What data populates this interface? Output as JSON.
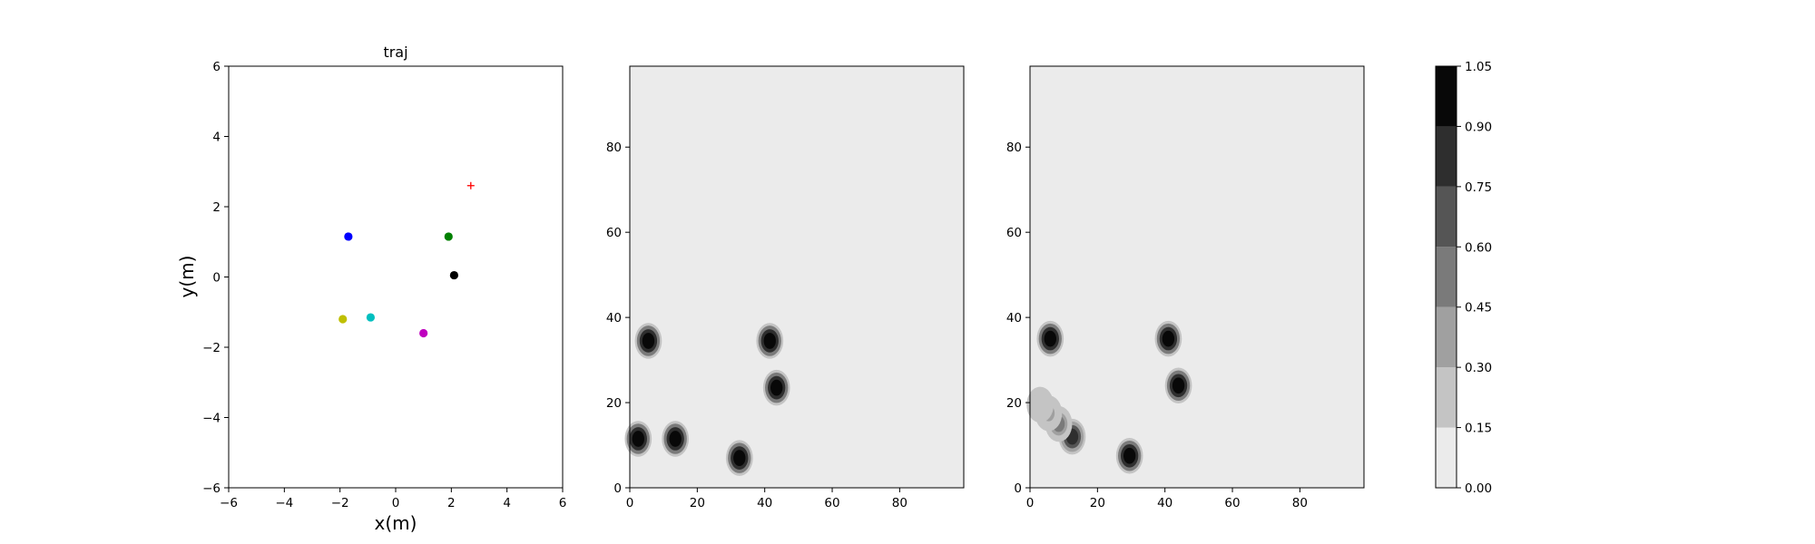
{
  "chart_data": [
    {
      "type": "scatter",
      "title": "traj",
      "xlabel": "x(m)",
      "ylabel": "y(m)",
      "xlim": [
        -6,
        6
      ],
      "ylim": [
        -6,
        6
      ],
      "xticks": [
        -6,
        -4,
        -2,
        0,
        2,
        4,
        6
      ],
      "yticks": [
        -6,
        -4,
        -2,
        0,
        2,
        4,
        6
      ],
      "points": [
        {
          "x": -1.7,
          "y": 1.15,
          "color": "#0000ff",
          "marker": "dot"
        },
        {
          "x": 1.9,
          "y": 1.15,
          "color": "#008000",
          "marker": "dot"
        },
        {
          "x": 2.1,
          "y": 0.05,
          "color": "#000000",
          "marker": "dot"
        },
        {
          "x": -1.9,
          "y": -1.2,
          "color": "#bfbf00",
          "marker": "dot"
        },
        {
          "x": -0.9,
          "y": -1.15,
          "color": "#00bfbf",
          "marker": "dot"
        },
        {
          "x": 1.0,
          "y": -1.6,
          "color": "#bf00bf",
          "marker": "dot"
        },
        {
          "x": 2.7,
          "y": 2.6,
          "color": "#ff0000",
          "marker": "plus"
        }
      ]
    },
    {
      "type": "heatmap",
      "xlim": [
        0,
        99
      ],
      "ylim": [
        0,
        99
      ],
      "xticks": [
        0,
        20,
        40,
        60,
        80
      ],
      "yticks": [
        0,
        20,
        40,
        60,
        80
      ],
      "background_value": 0.0,
      "blobs": [
        {
          "x": 5.5,
          "y": 34.5,
          "value": 1.0
        },
        {
          "x": 41.5,
          "y": 34.5,
          "value": 1.0
        },
        {
          "x": 43.5,
          "y": 23.5,
          "value": 1.0
        },
        {
          "x": 2.5,
          "y": 11.5,
          "value": 1.0
        },
        {
          "x": 13.5,
          "y": 11.5,
          "value": 1.0
        },
        {
          "x": 32.5,
          "y": 7.0,
          "value": 1.0
        }
      ]
    },
    {
      "type": "heatmap",
      "xlim": [
        0,
        99
      ],
      "ylim": [
        0,
        99
      ],
      "xticks": [
        0,
        20,
        40,
        60,
        80
      ],
      "yticks": [
        0,
        20,
        40,
        60,
        80
      ],
      "background_value": 0.0,
      "blobs": [
        {
          "x": 6.0,
          "y": 35.0,
          "value": 1.0
        },
        {
          "x": 41.0,
          "y": 35.0,
          "value": 1.0
        },
        {
          "x": 44.0,
          "y": 24.0,
          "value": 1.0
        },
        {
          "x": 29.5,
          "y": 7.5,
          "value": 1.0
        },
        {
          "x": 12.5,
          "y": 12.0,
          "value": 0.8
        },
        {
          "x": 8.5,
          "y": 15.0,
          "value": 0.5
        },
        {
          "x": 5.5,
          "y": 17.5,
          "value": 0.35
        },
        {
          "x": 3.0,
          "y": 19.5,
          "value": 0.25
        }
      ]
    },
    {
      "type": "colorbar",
      "levels": [
        "0.00",
        "0.15",
        "0.30",
        "0.45",
        "0.60",
        "0.75",
        "0.90",
        "1.05"
      ],
      "colors": [
        "#ebebeb",
        "#c4c4c4",
        "#a0a0a0",
        "#7a7a7a",
        "#555555",
        "#2e2e2e",
        "#080808"
      ]
    }
  ]
}
